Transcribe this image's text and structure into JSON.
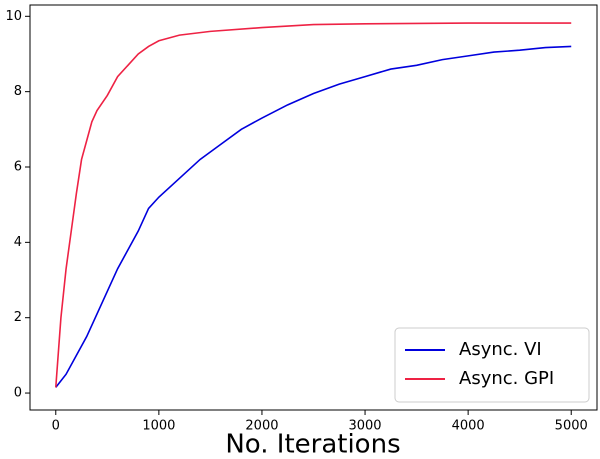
{
  "chart_data": {
    "type": "line",
    "xlabel": "No. Iterations",
    "xlim": [
      -250,
      5250
    ],
    "xticks": [
      0,
      1000,
      2000,
      3000,
      4000,
      5000
    ],
    "ylim": [
      -0.45,
      10.3
    ],
    "yticks": [
      0,
      2,
      4,
      6,
      8,
      10
    ],
    "legend": "lower right",
    "series": [
      {
        "name": "Async. VI",
        "color": "#0000dd",
        "x": [
          0,
          100,
          200,
          300,
          400,
          500,
          600,
          700,
          800,
          900,
          1000,
          1200,
          1400,
          1600,
          1800,
          2000,
          2250,
          2500,
          2750,
          3000,
          3250,
          3500,
          3750,
          4000,
          4250,
          4500,
          4750,
          5000
        ],
        "values": [
          0.15,
          0.5,
          1.0,
          1.5,
          2.1,
          2.7,
          3.3,
          3.8,
          4.3,
          4.9,
          5.2,
          5.7,
          6.2,
          6.6,
          7.0,
          7.3,
          7.65,
          7.95,
          8.2,
          8.4,
          8.6,
          8.7,
          8.85,
          8.95,
          9.05,
          9.1,
          9.17,
          9.2
        ]
      },
      {
        "name": "Async. GPI",
        "color": "#ee2244",
        "x": [
          0,
          50,
          100,
          150,
          200,
          250,
          300,
          350,
          400,
          500,
          600,
          700,
          800,
          900,
          1000,
          1200,
          1500,
          2000,
          2500,
          3000,
          4000,
          5000
        ],
        "values": [
          0.15,
          2.0,
          3.3,
          4.3,
          5.3,
          6.2,
          6.7,
          7.2,
          7.5,
          7.9,
          8.4,
          8.7,
          9.0,
          9.2,
          9.35,
          9.5,
          9.6,
          9.7,
          9.78,
          9.8,
          9.82,
          9.82
        ]
      }
    ]
  }
}
